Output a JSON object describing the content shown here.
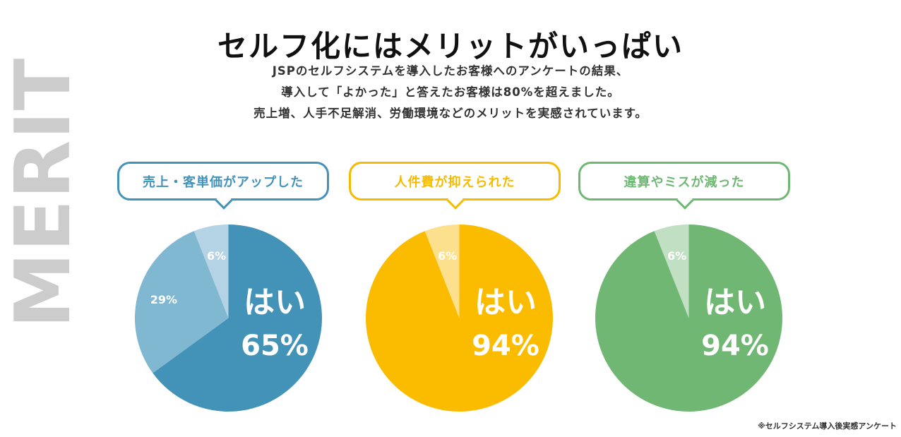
{
  "side_word": "MERIT",
  "headline": "セルフ化にはメリットがいっぱい",
  "intro_lines": [
    "JSPのセルフシステムを導入したお客様へのアンケートの結果、",
    "導入して「よかった」と答えたお客様は80%を超えました。",
    "売上増、人手不足解消、労働環境などのメリットを実感されています。"
  ],
  "footnote": "※セルフシステム導入後実感アンケート",
  "chart_data": [
    {
      "type": "pie",
      "title": "売上・客単価がアップした",
      "accent": "#4393b9",
      "slices": [
        {
          "value": 65,
          "label": "はい",
          "value_text": "65%",
          "color": "#4393b9"
        },
        {
          "value": 29,
          "label": "",
          "value_text": "29%",
          "color": "#80b7d1"
        },
        {
          "value": 6,
          "label": "",
          "value_text": "6%",
          "color": "#b4d3e4"
        }
      ]
    },
    {
      "type": "pie",
      "title": "人件費が抑えられた",
      "accent": "#f6bb00",
      "slices": [
        {
          "value": 94,
          "label": "はい",
          "value_text": "94%",
          "color": "#fbbc00"
        },
        {
          "value": 6,
          "label": "",
          "value_text": "6%",
          "color": "#fde08d"
        }
      ]
    },
    {
      "type": "pie",
      "title": "違算やミスが減った",
      "accent": "#6eb873",
      "slices": [
        {
          "value": 94,
          "label": "はい",
          "value_text": "94%",
          "color": "#6fb772"
        },
        {
          "value": 6,
          "label": "",
          "value_text": "6%",
          "color": "#c1dfc3"
        }
      ]
    }
  ]
}
